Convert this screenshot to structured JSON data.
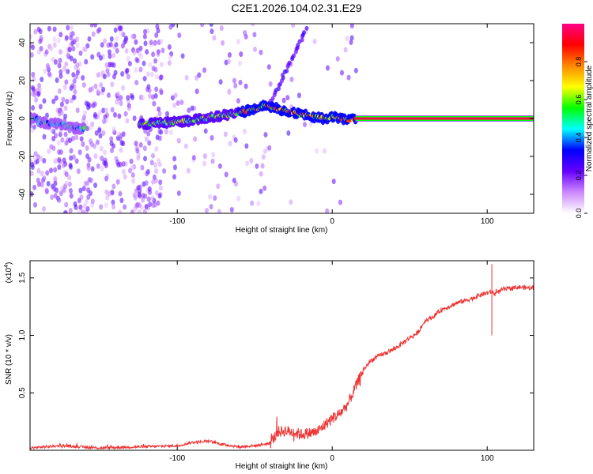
{
  "figure_title": "C2E1.2026.104.02.31.E29",
  "chart_data": [
    {
      "type": "heatmap",
      "title": "C2E1.2026.104.02.31.E29",
      "xlabel": "Height of straight line (km)",
      "ylabel": "Frequency (Hz)",
      "xlim": [
        -195,
        130
      ],
      "ylim": [
        -50,
        50
      ],
      "xticks": [
        -100,
        0,
        100
      ],
      "xtick_labels": [
        "-100",
        "0",
        "100"
      ],
      "yticks": [
        -40,
        -20,
        0,
        20,
        40
      ],
      "ytick_labels": [
        "-40",
        "-20",
        "0",
        "20",
        "40"
      ],
      "colorbar": {
        "label": "Normalized spectral amplitude",
        "range": [
          0,
          1
        ],
        "ticks": [
          0,
          0.2,
          0.4,
          0.6,
          0.8
        ],
        "tick_labels": [
          "0.0",
          "0.2",
          "0.4",
          "0.6",
          "0.8"
        ],
        "colors": [
          "#ffffff",
          "#cc88ff",
          "#6600ff",
          "#0000ff",
          "#00ffff",
          "#00ff00",
          "#ffff00",
          "#ff8800",
          "#ff0000",
          "#ff0088"
        ]
      },
      "ridge": {
        "description_points_x_km": [
          -190,
          -175,
          -165,
          -155,
          -125,
          -105,
          -90,
          -75,
          -60,
          -50,
          -42,
          -35,
          -28,
          -20,
          -12,
          -5,
          0,
          5,
          10,
          15,
          130
        ],
        "description_points_freq_hz": [
          -2,
          -3,
          -5,
          -6,
          -3,
          -2,
          -1,
          1,
          3,
          5,
          7,
          5,
          4,
          2,
          1,
          0,
          1,
          0,
          -1,
          0,
          0
        ],
        "peak_amplitude_section_x_km": [
          15,
          130
        ],
        "peak_amplitude_section_freq_hz": 0
      },
      "diagonal_feature": {
        "x_km": [
          -40,
          -17
        ],
        "freq_hz": [
          8,
          47
        ]
      }
    },
    {
      "type": "line",
      "xlabel": "Height of straight line (km)",
      "ylabel": "SNR (10 * v/v)",
      "y_multiplier_label": "(x10",
      "y_multiplier_exponent": "4",
      "y_multiplier_suffix": ")",
      "xlim": [
        -195,
        130
      ],
      "ylim": [
        0,
        1.65
      ],
      "xticks": [
        -100,
        0,
        100
      ],
      "xtick_labels": [
        "-100",
        "0",
        "100"
      ],
      "yticks": [
        0.5,
        1.0,
        1.5
      ],
      "ytick_labels": [
        "0.5",
        "1.0",
        "1.5"
      ],
      "series": [
        {
          "name": "SNR",
          "color": "#ee3333",
          "x": [
            -195,
            -175,
            -150,
            -125,
            -100,
            -90,
            -80,
            -70,
            -60,
            -50,
            -40,
            -35,
            -30,
            -20,
            -10,
            -5,
            0,
            5,
            10,
            15,
            20,
            25,
            30,
            40,
            50,
            55,
            60,
            65,
            70,
            80,
            85,
            90,
            95,
            100,
            103,
            105,
            110,
            120,
            130
          ],
          "y": [
            0.02,
            0.04,
            0.02,
            0.03,
            0.04,
            0.07,
            0.08,
            0.05,
            0.03,
            0.04,
            0.06,
            0.16,
            0.17,
            0.14,
            0.16,
            0.22,
            0.28,
            0.32,
            0.4,
            0.55,
            0.7,
            0.78,
            0.82,
            0.88,
            0.98,
            1.02,
            1.13,
            1.16,
            1.22,
            1.28,
            1.3,
            1.32,
            1.35,
            1.37,
            1.38,
            1.36,
            1.4,
            1.42,
            1.41
          ],
          "spikes": [
            {
              "x": 103,
              "y_low": 1.0,
              "y_high": 1.62
            }
          ]
        }
      ]
    }
  ]
}
